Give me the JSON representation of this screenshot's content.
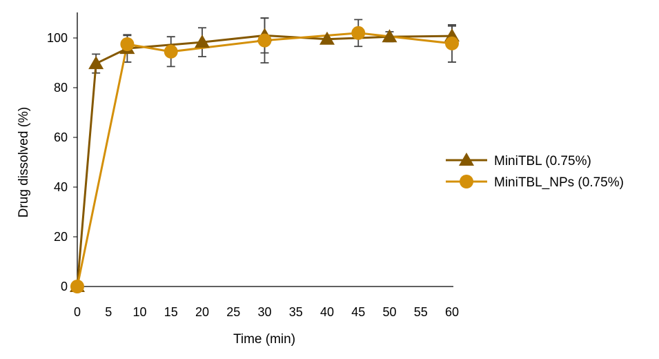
{
  "chart_data": {
    "type": "line",
    "title": "",
    "xlabel": "Time (min)",
    "ylabel": "Drug dissolved (%)",
    "xlim": [
      0,
      60
    ],
    "ylim": [
      0,
      100
    ],
    "xticks": [
      0,
      5,
      10,
      15,
      20,
      25,
      30,
      35,
      40,
      45,
      50,
      55,
      60
    ],
    "yticks": [
      0,
      20,
      40,
      60,
      80,
      100
    ],
    "grid": false,
    "legend_position": "right",
    "series": [
      {
        "name": "MiniTBL (0.75%)",
        "marker": "triangle",
        "color": "#855800",
        "x": [
          0,
          3,
          8,
          20,
          30,
          40,
          50,
          60
        ],
        "y": [
          0,
          89.7,
          95.8,
          98.3,
          101,
          99.5,
          100.5,
          100.8
        ],
        "err": [
          0,
          3.8,
          5.5,
          5.8,
          7,
          1.5,
          2,
          4
        ]
      },
      {
        "name": "MiniTBL_NPs (0.75%)",
        "marker": "circle",
        "color": "#D4900A",
        "x": [
          0,
          8,
          15,
          30,
          45,
          60
        ],
        "y": [
          0,
          97.5,
          94.5,
          99,
          102,
          97.8
        ],
        "err": [
          0,
          3.5,
          6,
          9,
          5.4,
          7.5
        ]
      }
    ]
  }
}
